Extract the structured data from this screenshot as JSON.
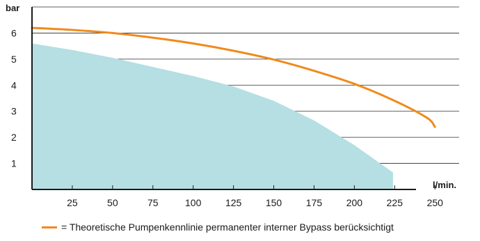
{
  "chart_data": {
    "type": "area",
    "ylabel": "bar",
    "xlabel": "l/min.",
    "xlim": [
      0,
      265
    ],
    "ylim": [
      0,
      7
    ],
    "x_ticks": [
      25,
      50,
      75,
      100,
      125,
      150,
      175,
      200,
      225,
      250
    ],
    "y_ticks": [
      1,
      2,
      3,
      4,
      5,
      6
    ],
    "grid": true,
    "series": [
      {
        "type": "line",
        "color": "#f08a1c",
        "x": [
          0,
          25,
          50,
          75,
          100,
          125,
          150,
          175,
          200,
          225,
          245,
          250
        ],
        "y": [
          6.2,
          6.12,
          6.0,
          5.82,
          5.6,
          5.32,
          4.98,
          4.55,
          4.05,
          3.4,
          2.75,
          2.4
        ]
      },
      {
        "type": "area",
        "color": "#b5dfe2",
        "x": [
          0,
          25,
          50,
          75,
          100,
          125,
          150,
          175,
          200,
          224,
          224
        ],
        "y": [
          5.6,
          5.35,
          5.05,
          4.7,
          4.35,
          3.95,
          3.4,
          2.65,
          1.7,
          0.65,
          0
        ]
      }
    ],
    "legend": {
      "position": "bottom-left",
      "text": "= Theoretische Pumpenkennlinie permanenter interner Bypass berücksichtigt"
    }
  }
}
